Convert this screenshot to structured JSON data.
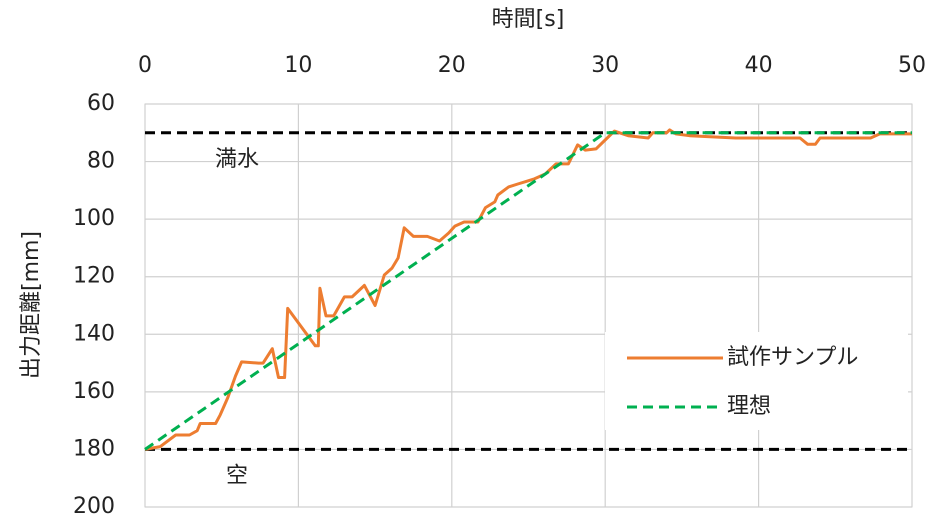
{
  "chart_data": {
    "type": "line",
    "x_title": "時間[s]",
    "y_title": "出力距離[mm]",
    "xlim": [
      0,
      50
    ],
    "xticks": [
      0,
      10,
      20,
      30,
      40,
      50
    ],
    "ylim": [
      60,
      200
    ],
    "yticks": [
      60,
      80,
      100,
      120,
      140,
      160,
      180,
      200
    ],
    "y_reversed": true,
    "x_axis_position": "top",
    "grid": true,
    "legend_position": "right",
    "reference_lines": [
      {
        "value": 70,
        "label": "満水",
        "color": "#000000"
      },
      {
        "value": 180,
        "label": "空",
        "color": "#000000"
      }
    ],
    "series": [
      {
        "name": "試作サンプル",
        "color": "#ed7d31",
        "dashed": false,
        "x": [
          0,
          1,
          2,
          2.9,
          3.4,
          3.6,
          4.6,
          4.9,
          5.4,
          5.9,
          6.3,
          7.4,
          7.7,
          8.3,
          8.7,
          9.1,
          9.3,
          11.1,
          11.3,
          11.4,
          11.8,
          12.3,
          13.0,
          13.5,
          14.3,
          15.0,
          15.6,
          16.1,
          16.5,
          16.9,
          17.5,
          18.4,
          19.2,
          19.8,
          20.2,
          20.8,
          21.7,
          22.2,
          22.8,
          23.0,
          23.7,
          24.3,
          24.8,
          25.4,
          26.1,
          26.8,
          27.6,
          28.2,
          28.7,
          29.4,
          30.1,
          30.6,
          31.5,
          32.8,
          33.1,
          34.0,
          34.2,
          34.6,
          35.5,
          38.5,
          42.7,
          43.2,
          43.7,
          44.0,
          47.3,
          47.9,
          50
        ],
        "values": [
          180,
          179,
          175,
          175,
          173.5,
          171,
          171,
          168,
          162,
          154.5,
          149.6,
          150,
          150,
          145,
          155,
          155,
          131,
          144,
          144,
          124,
          133.6,
          133.6,
          127,
          127,
          123,
          130,
          119.4,
          117,
          113.5,
          103,
          106,
          106,
          107.6,
          104.8,
          102.4,
          101,
          101,
          96,
          94,
          91.6,
          88.8,
          87.8,
          87,
          86,
          84.3,
          80.8,
          80.8,
          74.2,
          76,
          75.6,
          72,
          69.4,
          71,
          71.8,
          70,
          70,
          69,
          70.4,
          71,
          71.8,
          71.8,
          74,
          74,
          71.8,
          71.8,
          70.4,
          70.4
        ]
      },
      {
        "name": "理想",
        "color": "#00b050",
        "dashed": true,
        "x": [
          0,
          30,
          50
        ],
        "values": [
          180,
          70,
          70
        ]
      }
    ]
  }
}
